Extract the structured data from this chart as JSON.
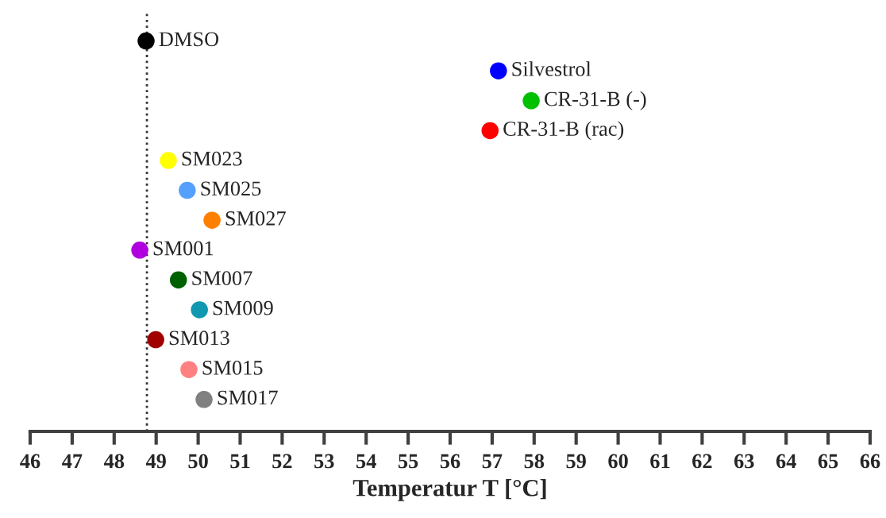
{
  "chart_data": {
    "type": "scatter",
    "orientation": "horizontal",
    "xlabel": "Temperatur T [°C]",
    "categories": [
      "DMSO",
      "Silvestrol",
      "CR-31-B (-)",
      "CR-31-B (rac)",
      "SM023",
      "SM025",
      "SM027",
      "SM001",
      "SM007",
      "SM009",
      "SM013",
      "SM015",
      "SM017"
    ],
    "values": [
      48.76,
      57.15,
      57.93,
      56.95,
      49.29,
      49.74,
      50.33,
      48.61,
      49.53,
      50.03,
      48.99,
      49.78,
      50.14
    ],
    "colors": [
      "#000000",
      "#0000ff",
      "#00c000",
      "#ff0000",
      "#ffff00",
      "#55a0ff",
      "#ff8000",
      "#b000e0",
      "#006000",
      "#1098b0",
      "#a00000",
      "#ff8080",
      "#808080"
    ],
    "xlim": [
      46,
      66
    ],
    "xticks": [
      46,
      47,
      48,
      49,
      50,
      51,
      52,
      53,
      54,
      55,
      56,
      57,
      58,
      59,
      60,
      61,
      62,
      63,
      64,
      65,
      66
    ],
    "ref_lines": [
      {
        "axis": "x",
        "value": 48.78,
        "color": "#333333",
        "line_style": "dotted"
      }
    ],
    "tick_labels": "x",
    "grid": false,
    "legend": false,
    "marker": "circle"
  }
}
